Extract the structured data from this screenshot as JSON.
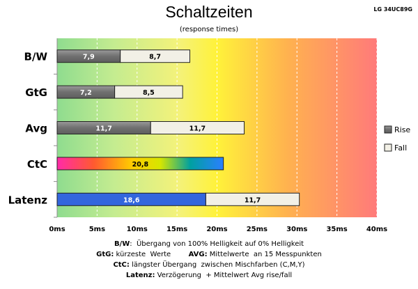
{
  "model": "LG 34UC89G",
  "colors": {
    "rise": "#7f7f7f",
    "fall": "#f2f0e6",
    "latenz": "#3366dd",
    "background_gradient": [
      "#8fdc8f",
      "#e8f28a",
      "#fff23a",
      "#ffb24f",
      "#ff7a7a"
    ]
  },
  "chart_data": {
    "type": "bar",
    "orientation": "horizontal",
    "stacked": true,
    "title": "Schaltzeiten",
    "subtitle": "(response times)",
    "categories": [
      "B/W",
      "GtG",
      "Avg",
      "CtC",
      "Latenz"
    ],
    "series": [
      {
        "name": "Rise",
        "values": [
          7.9,
          7.2,
          11.7,
          null,
          null
        ],
        "labels": [
          "7,9",
          "7,2",
          "11,7",
          null,
          null
        ]
      },
      {
        "name": "Fall",
        "values": [
          8.7,
          8.5,
          11.7,
          null,
          11.7
        ],
        "labels": [
          "8,7",
          "8,5",
          "11,7",
          null,
          "11,7"
        ]
      },
      {
        "name": "",
        "values": [
          null,
          null,
          null,
          20.8,
          null
        ],
        "labels": [
          null,
          null,
          null,
          "20,8",
          null
        ]
      },
      {
        "name": "",
        "values": [
          null,
          null,
          null,
          null,
          18.6
        ],
        "labels": [
          null,
          null,
          null,
          null,
          "18,6"
        ]
      }
    ],
    "xlim": [
      0,
      40
    ],
    "xticks": [
      "0ms",
      "5ms",
      "10ms",
      "15ms",
      "20ms",
      "25ms",
      "30ms",
      "35ms",
      "40ms"
    ],
    "xtick_values": [
      0,
      5,
      10,
      15,
      20,
      25,
      30,
      35,
      40
    ],
    "legend": {
      "placement": "right",
      "entries": [
        "Rise",
        "Fall"
      ]
    },
    "grid": "vertical dashed"
  },
  "notes": [
    {
      "parts": [
        {
          "b": "B/W"
        },
        {
          "t": ":  Übergang von 100% Helligkeit auf 0% Helligkeit"
        }
      ]
    },
    {
      "parts": [
        {
          "b": "GtG:"
        },
        {
          "t": " kürzeste  Werte        "
        },
        {
          "b": "AVG:"
        },
        {
          "t": " Mittelwerte  an 15 Messpunkten"
        }
      ]
    },
    {
      "parts": [
        {
          "b": "CtC:"
        },
        {
          "t": " längster Übergang  zwischen Mischfarben (C,M,Y)"
        }
      ]
    },
    {
      "parts": [
        {
          "b": "Latenz:"
        },
        {
          "t": " Verzögerung  + Mittelwert Avg rise/fall"
        }
      ]
    }
  ]
}
